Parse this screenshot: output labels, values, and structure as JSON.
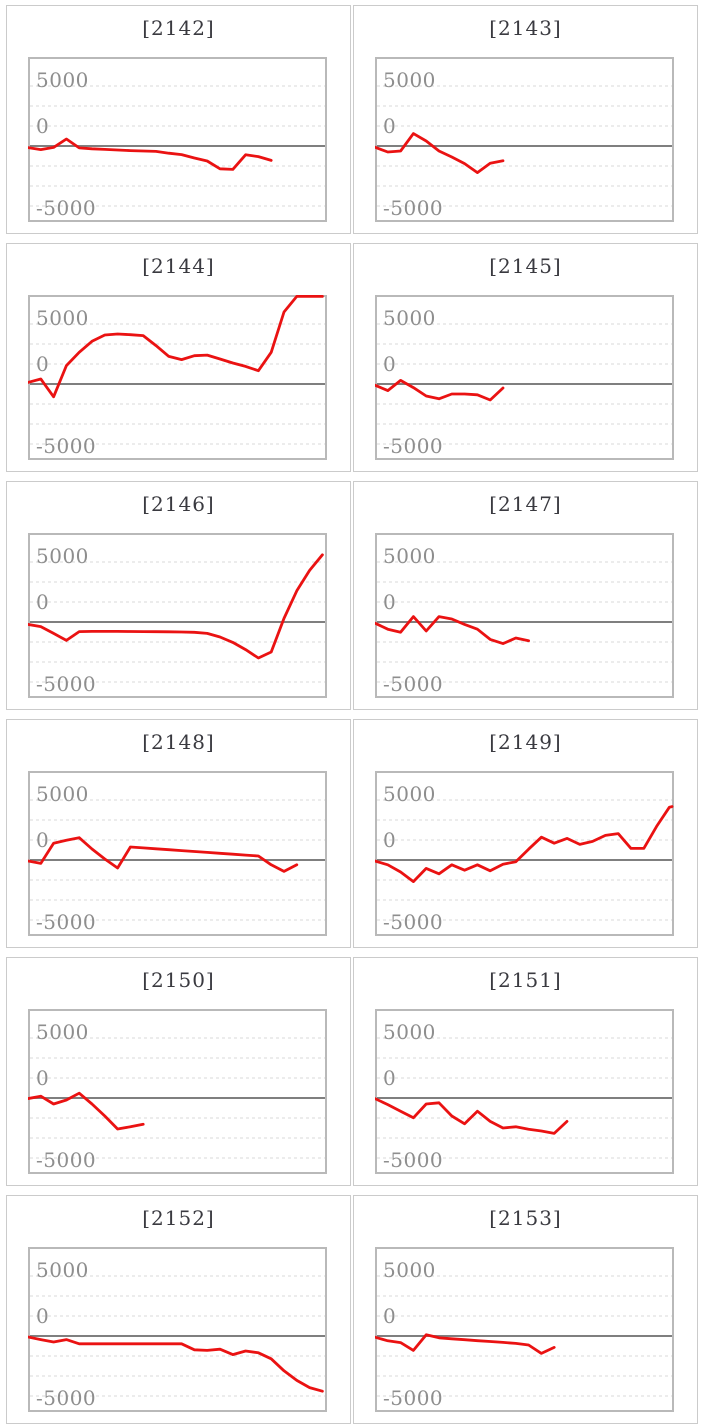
{
  "style": {
    "series_color": "#ea1212",
    "plot_border_color": "#b9b9b9",
    "cell_border_color": "#cbcbcb",
    "zero_axis_color": "#7f7f7f",
    "gridline_color": "#d8d8d8",
    "title_color": "#3a3a40",
    "tick_label_color": "#8e8e8e",
    "background": "#ffffff"
  },
  "axis": {
    "yticks": [
      {
        "label": "5000",
        "value": 5000
      },
      {
        "label": "0",
        "value": 0
      },
      {
        "label": "-5000",
        "value": -5000
      }
    ],
    "gridlines_minor": [
      3333,
      1667,
      -1667,
      -3333,
      -5000,
      5000
    ],
    "ylim": [
      -6300,
      7400
    ],
    "grid": true,
    "x_labels_shown": false
  },
  "chart_data": [
    {
      "type": "line",
      "title": "[2142]",
      "id": "2142",
      "ylim": [
        -6300,
        7400
      ],
      "yticks": [
        5000,
        0,
        -5000
      ],
      "values": [
        -130,
        -300,
        -120,
        580,
        -160,
        -230,
        -280,
        -330,
        -380,
        -420,
        -450,
        -600,
        -720,
        -1000,
        -1250,
        -1900,
        -1950,
        -730,
        -880,
        -1200
      ]
    },
    {
      "type": "line",
      "title": "[2143]",
      "id": "2143",
      "ylim": [
        -6300,
        7400
      ],
      "yticks": [
        5000,
        0,
        -5000
      ],
      "values": [
        -100,
        -500,
        -420,
        1030,
        420,
        -420,
        -920,
        -1470,
        -2220,
        -1430,
        -1230
      ]
    },
    {
      "type": "line",
      "title": "[2144]",
      "id": "2144",
      "ylim": [
        -6300,
        7400
      ],
      "yticks": [
        5000,
        0,
        -5000
      ],
      "values": [
        130,
        420,
        -1070,
        1530,
        2640,
        3560,
        4080,
        4170,
        4110,
        4030,
        3200,
        2300,
        2030,
        2360,
        2410,
        2080,
        1750,
        1470,
        1110,
        2640,
        6000,
        7400,
        7400,
        7400
      ]
    },
    {
      "type": "line",
      "title": "[2145]",
      "id": "2145",
      "ylim": [
        -6300,
        7400
      ],
      "yticks": [
        5000,
        0,
        -5000
      ],
      "values": [
        -100,
        -550,
        300,
        -300,
        -1000,
        -1230,
        -830,
        -830,
        -900,
        -1330,
        -330
      ]
    },
    {
      "type": "line",
      "title": "[2146]",
      "id": "2146",
      "ylim": [
        -6300,
        7400
      ],
      "yticks": [
        5000,
        0,
        -5000
      ],
      "values": [
        -200,
        -380,
        -950,
        -1530,
        -800,
        -780,
        -780,
        -780,
        -790,
        -800,
        -810,
        -820,
        -830,
        -860,
        -950,
        -1250,
        -1700,
        -2300,
        -3000,
        -2500,
        300,
        2600,
        4300,
        5600
      ]
    },
    {
      "type": "line",
      "title": "[2147]",
      "id": "2147",
      "ylim": [
        -6300,
        7400
      ],
      "yticks": [
        5000,
        0,
        -5000
      ],
      "values": [
        -100,
        -600,
        -850,
        450,
        -750,
        450,
        250,
        -200,
        -600,
        -1450,
        -1800,
        -1330,
        -1560
      ]
    },
    {
      "type": "line",
      "title": "[2148]",
      "id": "2148",
      "ylim": [
        -6300,
        7400
      ],
      "yticks": [
        5000,
        0,
        -5000
      ],
      "values": [
        -80,
        -280,
        1390,
        1640,
        1860,
        920,
        80,
        -670,
        1080,
        1005,
        930,
        855,
        780,
        705,
        630,
        555,
        480,
        405,
        330,
        -400,
        -950,
        -400
      ]
    },
    {
      "type": "line",
      "title": "[2149]",
      "id": "2149",
      "ylim": [
        -6300,
        7400
      ],
      "yticks": [
        5000,
        0,
        -5000
      ],
      "values": [
        -80,
        -400,
        -1000,
        -1800,
        -700,
        -1150,
        -400,
        -850,
        -400,
        -900,
        -350,
        -150,
        900,
        1900,
        1400,
        1800,
        1300,
        1550,
        2050,
        2200,
        970,
        970,
        2800,
        4400,
        4450
      ]
    },
    {
      "type": "line",
      "title": "[2150]",
      "id": "2150",
      "ylim": [
        -6300,
        7400
      ],
      "yticks": [
        5000,
        0,
        -5000
      ],
      "values": [
        -50,
        150,
        -500,
        -170,
        400,
        -500,
        -1500,
        -2580,
        -2400,
        -2190
      ]
    },
    {
      "type": "line",
      "title": "[2151]",
      "id": "2151",
      "ylim": [
        -6300,
        7400
      ],
      "yticks": [
        5000,
        0,
        -5000
      ],
      "values": [
        -50,
        -550,
        -1100,
        -1650,
        -500,
        -400,
        -1500,
        -2150,
        -1100,
        -1950,
        -2500,
        -2400,
        -2600,
        -2750,
        -2950,
        -1950
      ]
    },
    {
      "type": "line",
      "title": "[2152]",
      "id": "2152",
      "ylim": [
        -6300,
        7400
      ],
      "yticks": [
        5000,
        0,
        -5000
      ],
      "values": [
        -80,
        -300,
        -500,
        -300,
        -650,
        -650,
        -650,
        -650,
        -650,
        -650,
        -650,
        -650,
        -650,
        -1150,
        -1200,
        -1100,
        -1550,
        -1250,
        -1400,
        -1900,
        -2900,
        -3700,
        -4300,
        -4600
      ]
    },
    {
      "type": "line",
      "title": "[2153]",
      "id": "2153",
      "ylim": [
        -6300,
        7400
      ],
      "yticks": [
        5000,
        0,
        -5000
      ],
      "values": [
        -100,
        -400,
        -550,
        -1200,
        100,
        -150,
        -230,
        -310,
        -390,
        -460,
        -530,
        -620,
        -750,
        -1450,
        -950
      ]
    }
  ]
}
